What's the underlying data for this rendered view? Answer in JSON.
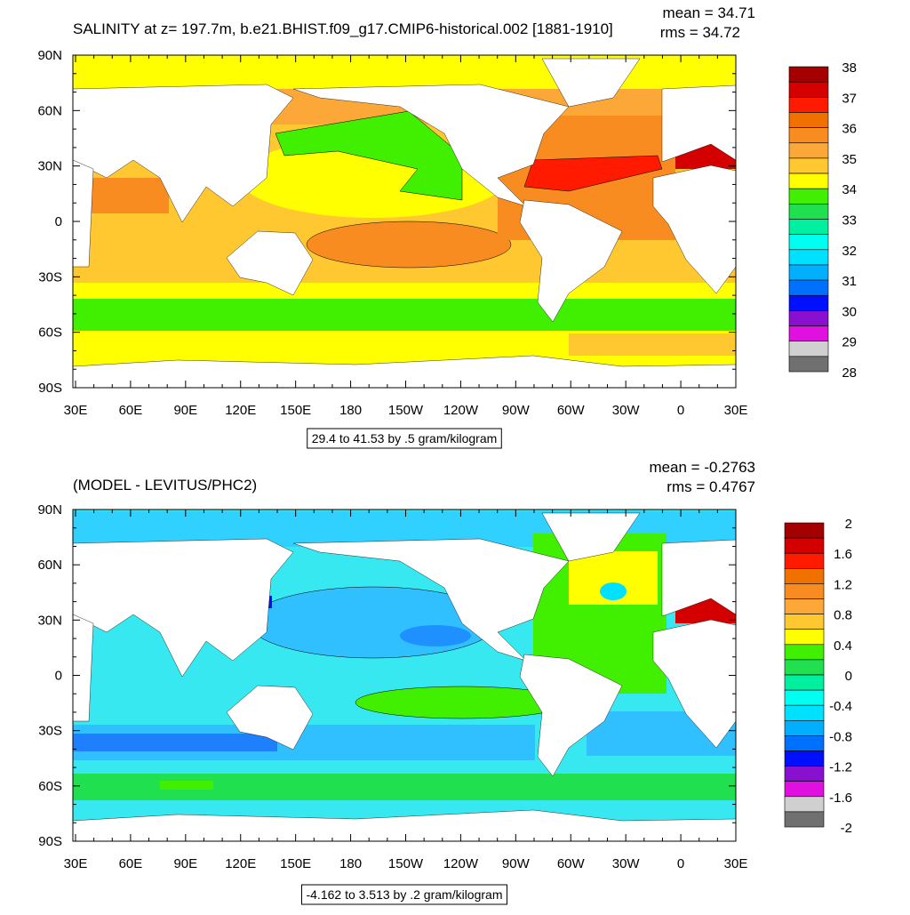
{
  "panels": [
    {
      "title": "SALINITY at z= 197.7m, b.e21.BHIST.f09_g17.CMIP6-historical.002 [1881-1910]",
      "mean_label": "mean = 34.71",
      "rms_label": "rms = 34.72",
      "range_note": "29.4 to 41.53 by .5 gram/kilogram",
      "lat_labels": [
        "90N",
        "60N",
        "30N",
        "0",
        "30S",
        "60S",
        "90S"
      ],
      "lon_labels": [
        "30E",
        "60E",
        "90E",
        "120E",
        "150E",
        "180",
        "150W",
        "120W",
        "90W",
        "60W",
        "30W",
        "0",
        "30E"
      ],
      "colorbar": {
        "colors": [
          "#a50000",
          "#d40000",
          "#ff1a00",
          "#f07000",
          "#f88c20",
          "#fca838",
          "#ffc830",
          "#ffff00",
          "#40f000",
          "#20e050",
          "#00f0a0",
          "#00fff0",
          "#00e0ff",
          "#00b0ff",
          "#0070ff",
          "#0010ff",
          "#8a10d0",
          "#e010e0",
          "#d0d0d0",
          "#707070"
        ],
        "labels": [
          38,
          37,
          36,
          35,
          34,
          33,
          32,
          31,
          30,
          29,
          28
        ]
      }
    },
    {
      "title": "(MODEL - LEVITUS/PHC2)",
      "mean_label": "mean = -0.2763",
      "rms_label": "rms = 0.4767",
      "range_note": "-4.162 to 3.513 by .2 gram/kilogram",
      "lat_labels": [
        "90N",
        "60N",
        "30N",
        "0",
        "30S",
        "60S",
        "90S"
      ],
      "lon_labels": [
        "30E",
        "60E",
        "90E",
        "120E",
        "150E",
        "180",
        "150W",
        "120W",
        "90W",
        "60W",
        "30W",
        "0",
        "30E"
      ],
      "colorbar": {
        "colors": [
          "#a50000",
          "#d40000",
          "#ff1a00",
          "#f07000",
          "#f88c20",
          "#fca838",
          "#ffc830",
          "#ffff00",
          "#40f000",
          "#20e050",
          "#00f0a0",
          "#00fff0",
          "#00e0ff",
          "#00b0ff",
          "#0070ff",
          "#0010ff",
          "#8a10d0",
          "#e010e0",
          "#d0d0d0",
          "#707070"
        ],
        "labels": [
          2,
          1.6,
          1.2,
          0.8,
          0.4,
          0,
          -0.4,
          -0.8,
          -1.2,
          -1.6,
          -2
        ]
      }
    }
  ]
}
